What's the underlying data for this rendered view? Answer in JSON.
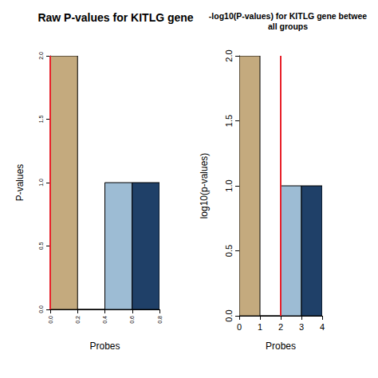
{
  "chart_data": [
    {
      "type": "histogram",
      "title": "Raw P-values for KITLG gene",
      "x_label": "Probes",
      "y_label": "P-values",
      "bins": [
        0,
        0.2,
        0.4,
        0.6,
        0.8
      ],
      "counts": [
        2,
        0,
        1,
        1
      ],
      "colors": [
        "#c4aa7e",
        "#afb3a9",
        "#9dbcd4",
        "#1f4068"
      ],
      "xlim": [
        0,
        0.8
      ],
      "xticks": [
        {
          "value": 0,
          "label": "0.0"
        },
        0.2,
        0.4,
        0.6,
        0.8
      ],
      "ylim": [
        0,
        2
      ],
      "yticks": [
        {
          "value": 0,
          "label": "0.0"
        },
        0.5,
        {
          "value": 1,
          "label": "1.0"
        },
        1.5,
        {
          "value": 2,
          "label": "2.0"
        }
      ],
      "threshold": 0,
      "grid": false
    },
    {
      "type": "histogram",
      "title": "-log10(P-values) for KITLG gene betwee\nall groups",
      "x_label": "Probes",
      "y_label": "log10(p-values)",
      "bins": [
        0,
        1,
        2,
        3,
        4
      ],
      "counts": [
        2,
        0,
        1,
        1
      ],
      "colors": [
        "#c4aa7e",
        "#afb3a9",
        "#9dbcd4",
        "#1f4068"
      ],
      "xlim": [
        0,
        4
      ],
      "xticks": [
        0,
        1,
        2,
        3,
        4
      ],
      "ylim": [
        0,
        2
      ],
      "yticks": [
        {
          "value": 0,
          "label": "0.0"
        },
        0.5,
        {
          "value": 1,
          "label": "1.0"
        },
        1.5,
        {
          "value": 2,
          "label": "2.0"
        }
      ],
      "threshold": 2,
      "grid": false
    }
  ]
}
